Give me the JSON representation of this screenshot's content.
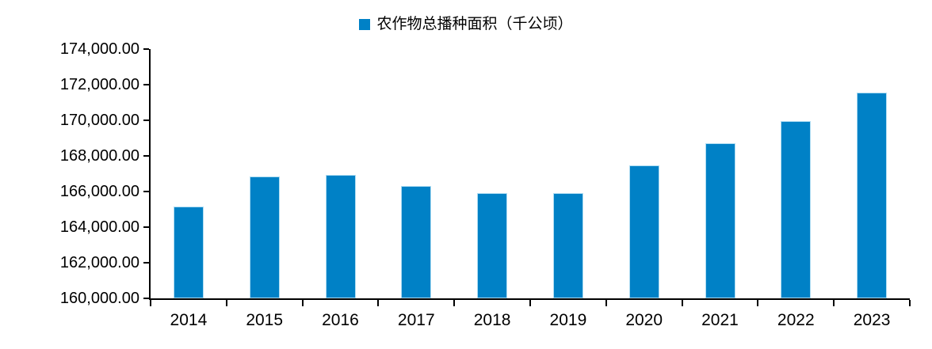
{
  "legend": {
    "label": "农作物总播种面积（千公顷）",
    "marker_color": "#0081C6"
  },
  "chart_data": {
    "type": "bar",
    "title": "",
    "legend_entries": [
      "农作物总播种面积（千公顷）"
    ],
    "legend_position": "top-center",
    "categories": [
      "2014",
      "2015",
      "2016",
      "2017",
      "2018",
      "2019",
      "2020",
      "2021",
      "2022",
      "2023"
    ],
    "series": [
      {
        "name": "农作物总播种面积（千公顷）",
        "values": [
          165143.7,
          166829.4,
          166939.7,
          166332.2,
          165902.4,
          165930.7,
          167487.0,
          168695.0,
          169946.3,
          171569.1
        ]
      }
    ],
    "ylabel": "",
    "xlabel": "",
    "ylim": [
      160000,
      174000
    ],
    "ytick_step": 2000,
    "ytick_labels": [
      "174,000.00",
      "172,000.00",
      "170,000.00",
      "168,000.00",
      "166,000.00",
      "164,000.00",
      "162,000.00",
      "160,000.00"
    ],
    "grid": false,
    "bar_color": "#0081C6",
    "bar_border_color": "#AEDCF2",
    "axis_color": "#000000",
    "background_color": "#FFFFFF"
  }
}
